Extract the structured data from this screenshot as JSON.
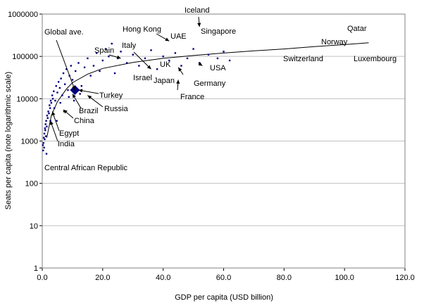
{
  "chart_data": {
    "type": "scatter",
    "title": "",
    "xlabel": "GDP per capita (USD billion)",
    "ylabel": "Seats per capita (note logarithmic scale)",
    "x_scale": "linear",
    "y_scale": "log",
    "xlim": [
      0,
      120
    ],
    "ylim": [
      1,
      1000000
    ],
    "x_ticks": [
      "0.0",
      "20.0",
      "40.0",
      "60.0",
      "80.0",
      "100.0",
      "120.0"
    ],
    "y_ticks": [
      "1",
      "10",
      "100",
      "1000",
      "10000",
      "100000",
      "1000000"
    ],
    "grid": "horizontal",
    "legend": "none",
    "colors": {
      "points": "#000080",
      "trend": "#000000",
      "grid": "#c0c0c0",
      "highlight": "#000080"
    },
    "series": [
      {
        "values": [
          [
            0.3,
            600
          ],
          [
            0.4,
            900
          ],
          [
            0.5,
            1200
          ],
          [
            0.6,
            700
          ],
          [
            0.7,
            1500
          ],
          [
            0.8,
            1100
          ],
          [
            0.9,
            2000
          ],
          [
            1.0,
            1800
          ],
          [
            1.1,
            2500
          ],
          [
            1.2,
            1300
          ],
          [
            1.3,
            3000
          ],
          [
            1.5,
            2200
          ],
          [
            1.6,
            4000
          ],
          [
            1.8,
            3500
          ],
          [
            2.0,
            5000
          ],
          [
            2.2,
            4500
          ],
          [
            2.4,
            7000
          ],
          [
            2.6,
            6000
          ],
          [
            2.8,
            9000
          ],
          [
            3.0,
            8000
          ],
          [
            3.3,
            12000
          ],
          [
            3.5,
            10000
          ],
          [
            3.8,
            15000
          ],
          [
            4.0,
            6000
          ],
          [
            4.3,
            9000
          ],
          [
            4.6,
            20000
          ],
          [
            5.0,
            14000
          ],
          [
            5.4,
            25000
          ],
          [
            5.8,
            18000
          ],
          [
            6.2,
            30000
          ],
          [
            6.6,
            12000
          ],
          [
            7.0,
            40000
          ],
          [
            7.5,
            22000
          ],
          [
            8.0,
            50000
          ],
          [
            8.5,
            16000
          ],
          [
            9.0,
            35000
          ],
          [
            9.5,
            60000
          ],
          [
            10.0,
            28000
          ],
          [
            11.0,
            45000
          ],
          [
            12.0,
            70000
          ],
          [
            13.0,
            20000
          ],
          [
            14.0,
            55000
          ],
          [
            15.0,
            90000
          ],
          [
            16.0,
            35000
          ],
          [
            17.0,
            60000
          ],
          [
            18.0,
            120000
          ],
          [
            19.0,
            45000
          ],
          [
            20.0,
            80000
          ],
          [
            21.0,
            150000
          ],
          [
            22.0,
            100000
          ],
          [
            23.0,
            200000
          ],
          [
            24.0,
            40000
          ],
          [
            25.0,
            90000
          ],
          [
            26.0,
            130000
          ],
          [
            28.0,
            70000
          ],
          [
            30.0,
            110000
          ],
          [
            32.0,
            60000
          ],
          [
            34.0,
            90000
          ],
          [
            36.0,
            140000
          ],
          [
            38.0,
            50000
          ],
          [
            40.0,
            100000
          ],
          [
            42.0,
            80000
          ],
          [
            44.0,
            120000
          ],
          [
            46.0,
            60000
          ],
          [
            48.0,
            90000
          ],
          [
            50.0,
            150000
          ],
          [
            52.0,
            70000
          ],
          [
            55.0,
            110000
          ],
          [
            58.0,
            90000
          ],
          [
            60.0,
            130000
          ],
          [
            62.0,
            80000
          ],
          [
            2.7,
            3000
          ],
          [
            0.2,
            800
          ],
          [
            1.4,
            500
          ],
          [
            4.8,
            3000
          ],
          [
            6.0,
            8000
          ],
          [
            7.2,
            5000
          ],
          [
            8.8,
            11000
          ],
          [
            10.5,
            9000
          ],
          [
            12.5,
            13000
          ]
        ]
      }
    ],
    "global_average": [
      10.8,
      16000
    ],
    "trend_curve": [
      [
        1.5,
        1200
      ],
      [
        3,
        4000
      ],
      [
        5,
        8500
      ],
      [
        8,
        17000
      ],
      [
        10,
        24000
      ],
      [
        15,
        38000
      ],
      [
        20,
        52000
      ],
      [
        30,
        72000
      ],
      [
        40,
        90000
      ],
      [
        50,
        105000
      ],
      [
        60,
        120000
      ],
      [
        70,
        135000
      ],
      [
        80,
        150000
      ],
      [
        90,
        170000
      ],
      [
        100,
        190000
      ],
      [
        108,
        210000
      ]
    ],
    "annotations": [
      {
        "text": "Iceland",
        "point": [
          52,
          500000
        ]
      },
      {
        "text": "Hong Kong",
        "point": [
          42,
          230000
        ]
      },
      {
        "text": "UAE",
        "point": [
          42.5,
          240000
        ]
      },
      {
        "text": "Singapore",
        "point": [
          52,
          280000
        ]
      },
      {
        "text": "Qatar",
        "point": [
          105,
          330000
        ]
      },
      {
        "text": "Norway",
        "point": [
          101,
          200000
        ]
      },
      {
        "text": "Switzerland",
        "point": [
          83,
          150000
        ]
      },
      {
        "text": "Luxembourg",
        "point": [
          107,
          120000
        ]
      },
      {
        "text": "Spain",
        "point": [
          26,
          90000
        ]
      },
      {
        "text": "Italy",
        "point": [
          36,
          50000
        ]
      },
      {
        "text": "UK",
        "point": [
          39,
          60000
        ]
      },
      {
        "text": "Israel",
        "point": [
          33,
          55000
        ]
      },
      {
        "text": "Japan",
        "point": [
          43,
          45000
        ]
      },
      {
        "text": "USA",
        "point": [
          53,
          60000
        ]
      },
      {
        "text": "Germany",
        "point": [
          45,
          55000
        ]
      },
      {
        "text": "France",
        "point": [
          45,
          28000
        ]
      },
      {
        "text": "Global ave.",
        "point": [
          10.8,
          16000
        ]
      },
      {
        "text": "Turkey",
        "point": [
          12,
          16000
        ]
      },
      {
        "text": "Russia",
        "point": [
          15,
          12000
        ]
      },
      {
        "text": "Brazil",
        "point": [
          10,
          13000
        ]
      },
      {
        "text": "China",
        "point": [
          7,
          5500
        ]
      },
      {
        "text": "Egypt",
        "point": [
          3.3,
          5000
        ]
      },
      {
        "text": "India",
        "point": [
          2.7,
          3000
        ]
      },
      {
        "text": "Central African Republic",
        "point": [
          0.2,
          260
        ]
      }
    ]
  }
}
